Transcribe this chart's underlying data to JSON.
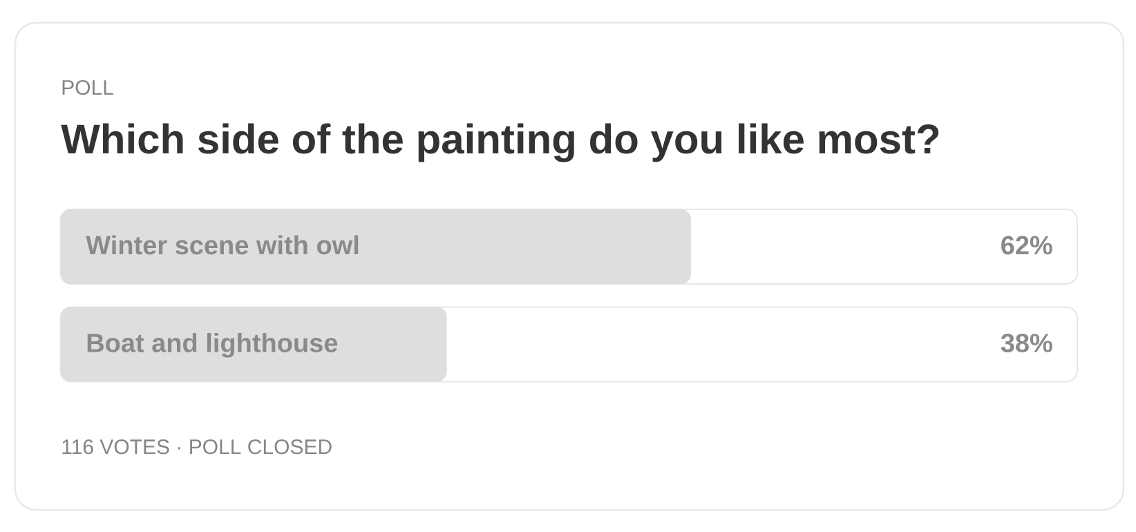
{
  "chart_data": {
    "type": "bar",
    "orientation": "horizontal",
    "subtitle": "POLL",
    "title": "Which side of the painting do you like most?",
    "categories": [
      "Winter scene with owl",
      "Boat and lighthouse"
    ],
    "values": [
      62,
      38
    ],
    "value_labels": [
      "62%",
      "38%"
    ],
    "color": "#dedede",
    "xlim": [
      0,
      100
    ],
    "tick_labels": "y",
    "annotations": [
      "116 VOTES · POLL CLOSED"
    ]
  }
}
